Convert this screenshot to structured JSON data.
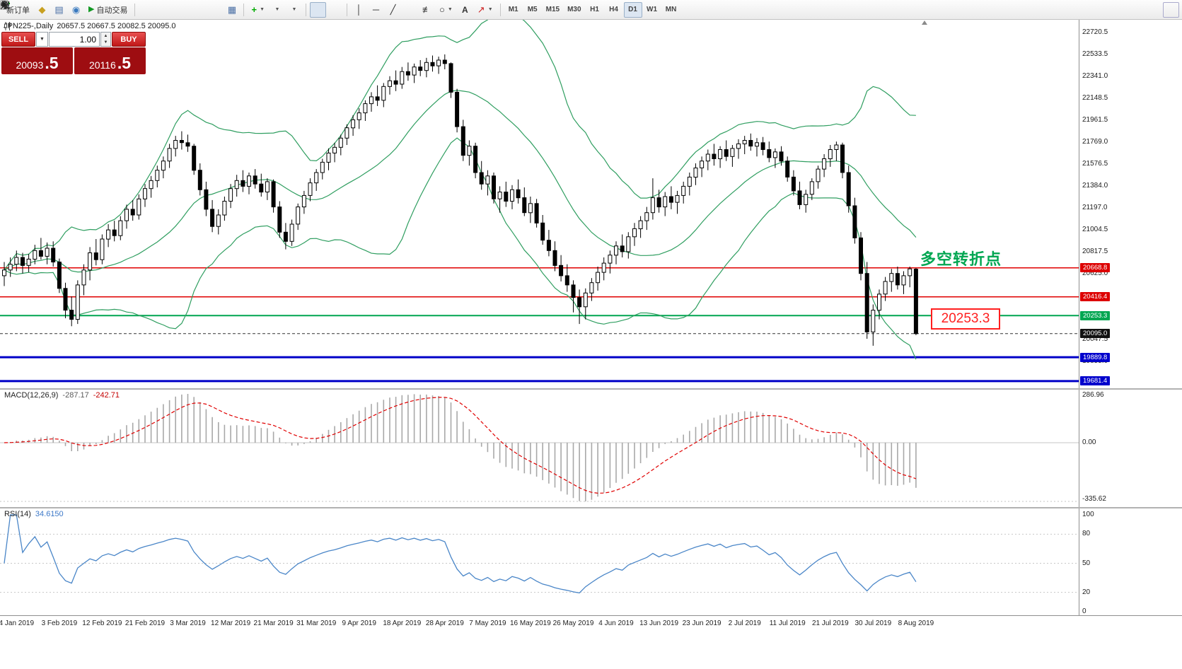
{
  "toolbar": {
    "new_order": "新订单",
    "autotrading": "自动交易",
    "text_tool": "A",
    "timeframes": [
      "M1",
      "M5",
      "M15",
      "M30",
      "H1",
      "H4",
      "D1",
      "W1",
      "MN"
    ],
    "active_timeframe": "D1"
  },
  "title": {
    "symbol_period": "JPN225-,Daily",
    "ohlc": "20657.5 20667.5 20082.5 20095.0"
  },
  "one_click": {
    "sell": "SELL",
    "buy": "BUY",
    "volume": "1.00",
    "bid_int": "20093",
    "bid_dec": ".5",
    "ask_int": "20116",
    "ask_dec": ".5"
  },
  "annotations": {
    "turning_point": "多空转折点",
    "price_label": "20253.3"
  },
  "price_axis": {
    "scale_labels": [
      "22720.5",
      "22533.5",
      "22341.0",
      "22148.5",
      "21961.5",
      "21769.0",
      "21576.5",
      "21384.0",
      "21197.0",
      "21004.5",
      "20817.5",
      "20625.0",
      "20432.5",
      "20240.0",
      "20047.5",
      "19855.0",
      "19662.5"
    ],
    "badges": [
      {
        "text": "20668.8",
        "price": 20668.8,
        "color": "#dd0000"
      },
      {
        "text": "20416.4",
        "price": 20416.4,
        "color": "#dd0000"
      },
      {
        "text": "20253.3",
        "price": 20253.3,
        "color": "#00a651"
      },
      {
        "text": "20095.0",
        "price": 20095.0,
        "color": "#111111"
      },
      {
        "text": "19889.8",
        "price": 19889.8,
        "color": "#0000cc"
      },
      {
        "text": "19681.4",
        "price": 19681.4,
        "color": "#0000cc"
      }
    ]
  },
  "macd": {
    "name": "MACD(12,26,9)",
    "main_value": "-287.17",
    "signal_value": "-242.71",
    "axis_max": "286.96",
    "axis_zero": "0.00",
    "axis_min": "-335.62"
  },
  "rsi": {
    "name": "RSI(14)",
    "value": "34.6150",
    "levels": [
      "100",
      "80",
      "50",
      "20",
      "0"
    ],
    "level_values": [
      100,
      80,
      50,
      20,
      0
    ]
  },
  "date_axis": {
    "labels": [
      "4 Jan 2019",
      "3 Feb 2019",
      "12 Feb 2019",
      "21 Feb 2019",
      "3 Mar 2019",
      "12 Mar 2019",
      "21 Mar 2019",
      "31 Mar 2019",
      "9 Apr 2019",
      "18 Apr 2019",
      "28 Apr 2019",
      "7 May 2019",
      "16 May 2019",
      "26 May 2019",
      "4 Jun 2019",
      "13 Jun 2019",
      "23 Jun 2019",
      "2 Jul 2019",
      "11 Jul 2019",
      "21 Jul 2019",
      "30 Jul 2019",
      "8 Aug 2019"
    ],
    "first_candle_index": 2,
    "step": 7
  },
  "colors": {
    "bollinger": "#2f9e60",
    "hline_red": "#e00000",
    "hline_green": "#00a651",
    "hline_blue": "#0000c8",
    "current_price_line": "#333333",
    "macd_hist": "#a8a8a8",
    "macd_signal": "#e00000",
    "rsi_line": "#4a86c8",
    "sell_buy_red": "#c01818",
    "price_box_red": "#9e0d11"
  },
  "chart_data": {
    "type": "candlestick",
    "symbol": "JPN225-",
    "timeframe": "Daily",
    "ohlc_display": [
      20657.5,
      20667.5,
      20082.5,
      20095.0
    ],
    "bid": 20093.5,
    "ask": 20116.5,
    "ylim": [
      19662.5,
      22720.5
    ],
    "x0": 6,
    "dx": 8.65,
    "current_price": 20095.0,
    "indicators": {
      "bollinger_period": 20,
      "bollinger_dev": 2,
      "macd": [
        12,
        26,
        9
      ],
      "rsi_period": 14
    },
    "hlines": [
      {
        "price": 20668.8,
        "color": "#e00000",
        "width": 1.5
      },
      {
        "price": 20416.4,
        "color": "#e00000",
        "width": 1.5
      },
      {
        "price": 20253.3,
        "color": "#00a651",
        "width": 2
      },
      {
        "price": 19889.8,
        "color": "#0000c8",
        "width": 3
      },
      {
        "price": 19681.4,
        "color": "#0000c8",
        "width": 3
      }
    ],
    "candles": [
      [
        20600,
        20720,
        20510,
        20650
      ],
      [
        20650,
        20760,
        20590,
        20700
      ],
      [
        20700,
        20820,
        20640,
        20760
      ],
      [
        20760,
        20800,
        20620,
        20690
      ],
      [
        20690,
        20790,
        20630,
        20745
      ],
      [
        20745,
        20870,
        20700,
        20820
      ],
      [
        20820,
        20930,
        20740,
        20770
      ],
      [
        20770,
        20890,
        20700,
        20840
      ],
      [
        20840,
        20900,
        20680,
        20720
      ],
      [
        20720,
        20750,
        20450,
        20490
      ],
      [
        20490,
        20540,
        20230,
        20300
      ],
      [
        20300,
        20420,
        20160,
        20220
      ],
      [
        20220,
        20560,
        20180,
        20520
      ],
      [
        20520,
        20700,
        20430,
        20650
      ],
      [
        20650,
        20850,
        20560,
        20800
      ],
      [
        20800,
        20920,
        20690,
        20740
      ],
      [
        20740,
        20960,
        20700,
        20920
      ],
      [
        20920,
        21050,
        20850,
        21000
      ],
      [
        21000,
        21080,
        20900,
        20950
      ],
      [
        20950,
        21120,
        20910,
        21080
      ],
      [
        21080,
        21220,
        21010,
        21180
      ],
      [
        21180,
        21260,
        21080,
        21130
      ],
      [
        21130,
        21310,
        21090,
        21270
      ],
      [
        21270,
        21400,
        21200,
        21360
      ],
      [
        21360,
        21470,
        21280,
        21430
      ],
      [
        21430,
        21560,
        21370,
        21520
      ],
      [
        21520,
        21640,
        21450,
        21600
      ],
      [
        21600,
        21750,
        21540,
        21710
      ],
      [
        21710,
        21820,
        21640,
        21780
      ],
      [
        21780,
        21860,
        21700,
        21760
      ],
      [
        21760,
        21830,
        21680,
        21730
      ],
      [
        21730,
        21750,
        21480,
        21520
      ],
      [
        21520,
        21580,
        21300,
        21350
      ],
      [
        21350,
        21420,
        21120,
        21180
      ],
      [
        21180,
        21260,
        20980,
        21030
      ],
      [
        21030,
        21180,
        20960,
        21130
      ],
      [
        21130,
        21290,
        21080,
        21250
      ],
      [
        21250,
        21400,
        21190,
        21360
      ],
      [
        21360,
        21480,
        21290,
        21430
      ],
      [
        21430,
        21520,
        21330,
        21380
      ],
      [
        21380,
        21500,
        21310,
        21470
      ],
      [
        21470,
        21530,
        21360,
        21400
      ],
      [
        21400,
        21490,
        21290,
        21330
      ],
      [
        21330,
        21450,
        21260,
        21420
      ],
      [
        21420,
        21440,
        21150,
        21200
      ],
      [
        21200,
        21250,
        20930,
        20980
      ],
      [
        20980,
        21060,
        20830,
        20900
      ],
      [
        20900,
        21090,
        20860,
        21050
      ],
      [
        21050,
        21230,
        21000,
        21200
      ],
      [
        21200,
        21340,
        21140,
        21300
      ],
      [
        21300,
        21450,
        21250,
        21410
      ],
      [
        21410,
        21530,
        21340,
        21500
      ],
      [
        21500,
        21620,
        21440,
        21590
      ],
      [
        21590,
        21710,
        21520,
        21670
      ],
      [
        21670,
        21760,
        21590,
        21720
      ],
      [
        21720,
        21830,
        21650,
        21800
      ],
      [
        21800,
        21920,
        21740,
        21890
      ],
      [
        21890,
        22000,
        21820,
        21960
      ],
      [
        21960,
        22060,
        21880,
        22020
      ],
      [
        22020,
        22130,
        21950,
        22100
      ],
      [
        22100,
        22200,
        22030,
        22160
      ],
      [
        22160,
        22260,
        22080,
        22130
      ],
      [
        22130,
        22280,
        22070,
        22250
      ],
      [
        22250,
        22340,
        22180,
        22300
      ],
      [
        22300,
        22390,
        22210,
        22270
      ],
      [
        22270,
        22420,
        22230,
        22380
      ],
      [
        22380,
        22460,
        22300,
        22350
      ],
      [
        22350,
        22450,
        22280,
        22420
      ],
      [
        22420,
        22480,
        22340,
        22390
      ],
      [
        22390,
        22500,
        22330,
        22460
      ],
      [
        22460,
        22520,
        22380,
        22430
      ],
      [
        22430,
        22510,
        22360,
        22480
      ],
      [
        22480,
        22530,
        22400,
        22450
      ],
      [
        22450,
        22460,
        22150,
        22200
      ],
      [
        22200,
        22230,
        21850,
        21900
      ],
      [
        21900,
        21960,
        21600,
        21650
      ],
      [
        21650,
        21780,
        21560,
        21730
      ],
      [
        21730,
        21760,
        21450,
        21500
      ],
      [
        21500,
        21600,
        21350,
        21400
      ],
      [
        21400,
        21520,
        21300,
        21470
      ],
      [
        21470,
        21500,
        21230,
        21270
      ],
      [
        21270,
        21380,
        21150,
        21330
      ],
      [
        21330,
        21420,
        21200,
        21250
      ],
      [
        21250,
        21390,
        21180,
        21350
      ],
      [
        21350,
        21440,
        21230,
        21280
      ],
      [
        21280,
        21370,
        21120,
        21150
      ],
      [
        21150,
        21290,
        21060,
        21230
      ],
      [
        21230,
        21270,
        21020,
        21060
      ],
      [
        21060,
        21130,
        20870,
        20910
      ],
      [
        20910,
        21000,
        20770,
        20820
      ],
      [
        20820,
        20900,
        20640,
        20690
      ],
      [
        20690,
        20780,
        20550,
        20600
      ],
      [
        20600,
        20700,
        20460,
        20520
      ],
      [
        20520,
        20560,
        20280,
        20410
      ],
      [
        20410,
        20480,
        20180,
        20330
      ],
      [
        20330,
        20490,
        20220,
        20450
      ],
      [
        20450,
        20580,
        20380,
        20540
      ],
      [
        20540,
        20680,
        20470,
        20630
      ],
      [
        20630,
        20760,
        20560,
        20710
      ],
      [
        20710,
        20820,
        20620,
        20780
      ],
      [
        20780,
        20900,
        20700,
        20860
      ],
      [
        20860,
        20960,
        20760,
        20810
      ],
      [
        20810,
        20980,
        20750,
        20940
      ],
      [
        20940,
        21060,
        20860,
        21010
      ],
      [
        21010,
        21120,
        20930,
        21080
      ],
      [
        21080,
        21200,
        21000,
        21150
      ],
      [
        21150,
        21450,
        21090,
        21280
      ],
      [
        21280,
        21350,
        21150,
        21200
      ],
      [
        21200,
        21330,
        21120,
        21290
      ],
      [
        21290,
        21380,
        21180,
        21240
      ],
      [
        21240,
        21340,
        21140,
        21300
      ],
      [
        21300,
        21420,
        21230,
        21380
      ],
      [
        21380,
        21500,
        21300,
        21460
      ],
      [
        21460,
        21580,
        21390,
        21540
      ],
      [
        21540,
        21640,
        21460,
        21600
      ],
      [
        21600,
        21700,
        21520,
        21660
      ],
      [
        21660,
        21750,
        21560,
        21620
      ],
      [
        21620,
        21730,
        21540,
        21700
      ],
      [
        21700,
        21780,
        21600,
        21640
      ],
      [
        21640,
        21740,
        21550,
        21710
      ],
      [
        21710,
        21790,
        21620,
        21750
      ],
      [
        21750,
        21820,
        21660,
        21780
      ],
      [
        21780,
        21840,
        21690,
        21730
      ],
      [
        21730,
        21800,
        21640,
        21760
      ],
      [
        21760,
        21810,
        21650,
        21700
      ],
      [
        21700,
        21770,
        21590,
        21630
      ],
      [
        21630,
        21710,
        21540,
        21680
      ],
      [
        21680,
        21730,
        21560,
        21600
      ],
      [
        21600,
        21640,
        21420,
        21460
      ],
      [
        21460,
        21520,
        21300,
        21340
      ],
      [
        21340,
        21420,
        21180,
        21220
      ],
      [
        21220,
        21350,
        21150,
        21310
      ],
      [
        21310,
        21450,
        21260,
        21420
      ],
      [
        21420,
        21560,
        21360,
        21530
      ],
      [
        21530,
        21660,
        21460,
        21620
      ],
      [
        21620,
        21740,
        21550,
        21700
      ],
      [
        21700,
        21770,
        21600,
        21740
      ],
      [
        21740,
        21760,
        21450,
        21500
      ],
      [
        21500,
        21560,
        21150,
        21210
      ],
      [
        21210,
        21280,
        20880,
        20930
      ],
      [
        20930,
        20980,
        20560,
        20620
      ],
      [
        20620,
        20720,
        20050,
        20110
      ],
      [
        20110,
        20350,
        19990,
        20300
      ],
      [
        20300,
        20480,
        20220,
        20440
      ],
      [
        20440,
        20590,
        20380,
        20550
      ],
      [
        20550,
        20660,
        20460,
        20620
      ],
      [
        20620,
        20680,
        20480,
        20520
      ],
      [
        20520,
        20640,
        20440,
        20600
      ],
      [
        20600,
        20680,
        20500,
        20660
      ],
      [
        20657.5,
        20667.5,
        20082.5,
        20095.0
      ]
    ]
  }
}
